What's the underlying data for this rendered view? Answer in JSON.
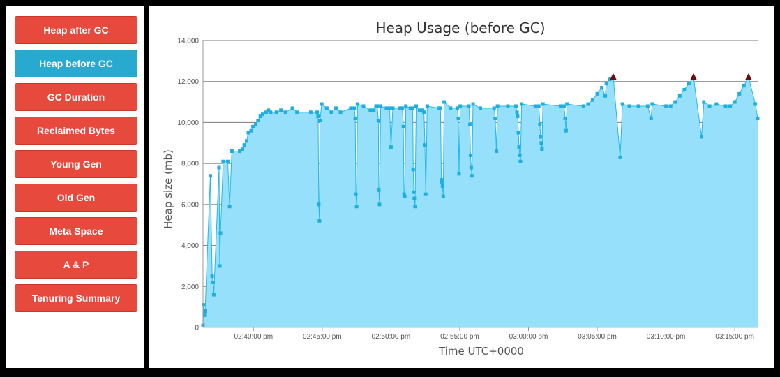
{
  "sidebar": {
    "items": [
      {
        "label": "Heap after GC",
        "active": false
      },
      {
        "label": "Heap before GC",
        "active": true
      },
      {
        "label": "GC Duration",
        "active": false
      },
      {
        "label": "Reclaimed Bytes",
        "active": false
      },
      {
        "label": "Young Gen",
        "active": false
      },
      {
        "label": "Old Gen",
        "active": false
      },
      {
        "label": "Meta Space",
        "active": false
      },
      {
        "label": "A & P",
        "active": false
      },
      {
        "label": "Tenuring Summary",
        "active": false
      }
    ]
  },
  "colors": {
    "button": "#e8493d",
    "button_active": "#27a9d0",
    "series_line": "#25b8e6",
    "series_fill": "#97e0fb",
    "marker": "#1eaee0",
    "peak_marker": "#6b0d0d"
  },
  "chart_data": {
    "type": "area",
    "title": "Heap Usage (before GC)",
    "xlabel": "Time UTC+0000",
    "ylabel": "Heap size (mb)",
    "ylim": [
      0,
      14000
    ],
    "yticks": [
      0,
      2000,
      4000,
      6000,
      8000,
      10000,
      12000,
      14000
    ],
    "ytick_labels": [
      "0",
      "2,000",
      "4,000",
      "6,000",
      "8,000",
      "10,000",
      "12,000",
      "14,000"
    ],
    "xlim": [
      "02:36:20",
      "03:16:40"
    ],
    "xticks": [
      "02:40:00",
      "02:45:00",
      "02:50:00",
      "02:55:00",
      "03:00:00",
      "03:05:00",
      "03:10:00",
      "03:15:00"
    ],
    "xtick_labels": [
      "02:40:00 pm",
      "02:45:00 pm",
      "02:50:00 pm",
      "02:55:00 pm",
      "03:00:00 pm",
      "03:05:00 pm",
      "03:10:00 pm",
      "03:15:00 pm"
    ],
    "grid": true,
    "legend": "none",
    "series": [
      {
        "points": [
          [
            "02:36:20",
            100
          ],
          [
            "02:36:23",
            1100
          ],
          [
            "02:36:26",
            600
          ],
          [
            "02:36:29",
            800
          ],
          [
            "02:36:52",
            7400
          ],
          [
            "02:37:00",
            2500
          ],
          [
            "02:37:04",
            2200
          ],
          [
            "02:37:07",
            1600
          ],
          [
            "02:37:30",
            7800
          ],
          [
            "02:37:33",
            3000
          ],
          [
            "02:37:36",
            4600
          ],
          [
            "02:37:48",
            8100
          ],
          [
            "02:38:08",
            8100
          ],
          [
            "02:38:16",
            5900
          ],
          [
            "02:38:26",
            8600
          ],
          [
            "02:39:00",
            8600
          ],
          [
            "02:39:12",
            8700
          ],
          [
            "02:39:20",
            8900
          ],
          [
            "02:39:30",
            9100
          ],
          [
            "02:39:38",
            9500
          ],
          [
            "02:39:50",
            9600
          ],
          [
            "02:39:58",
            9800
          ],
          [
            "02:40:10",
            9900
          ],
          [
            "02:40:20",
            10100
          ],
          [
            "02:40:30",
            10300
          ],
          [
            "02:40:40",
            10400
          ],
          [
            "02:40:55",
            10500
          ],
          [
            "02:41:05",
            10600
          ],
          [
            "02:41:15",
            10500
          ],
          [
            "02:41:40",
            10500
          ],
          [
            "02:42:00",
            10600
          ],
          [
            "02:42:20",
            10500
          ],
          [
            "02:42:50",
            10700
          ],
          [
            "02:43:10",
            10500
          ],
          [
            "02:44:10",
            10500
          ],
          [
            "02:44:38",
            10500
          ],
          [
            "02:44:42",
            10300
          ],
          [
            "02:44:45",
            6000
          ],
          [
            "02:44:48",
            5200
          ],
          [
            "02:44:50",
            10100
          ],
          [
            "02:44:58",
            10900
          ],
          [
            "02:45:20",
            10700
          ],
          [
            "02:45:40",
            10500
          ],
          [
            "02:46:00",
            10700
          ],
          [
            "02:46:20",
            10500
          ],
          [
            "02:47:05",
            10700
          ],
          [
            "02:47:20",
            10700
          ],
          [
            "02:47:24",
            10200
          ],
          [
            "02:47:27",
            6500
          ],
          [
            "02:47:30",
            5900
          ],
          [
            "02:47:34",
            10900
          ],
          [
            "02:48:00",
            10800
          ],
          [
            "02:48:30",
            10600
          ],
          [
            "02:48:45",
            10600
          ],
          [
            "02:48:55",
            10800
          ],
          [
            "02:49:00",
            10800
          ],
          [
            "02:49:05",
            10100
          ],
          [
            "02:49:07",
            6700
          ],
          [
            "02:49:10",
            6000
          ],
          [
            "02:49:15",
            10800
          ],
          [
            "02:49:40",
            10700
          ],
          [
            "02:49:54",
            10700
          ],
          [
            "02:50:00",
            8800
          ],
          [
            "02:50:08",
            10700
          ],
          [
            "02:50:40",
            10700
          ],
          [
            "02:50:50",
            10700
          ],
          [
            "02:50:54",
            9800
          ],
          [
            "02:50:57",
            6500
          ],
          [
            "02:51:00",
            6400
          ],
          [
            "02:51:05",
            10800
          ],
          [
            "02:51:25",
            10700
          ],
          [
            "02:51:35",
            10700
          ],
          [
            "02:51:37",
            7700
          ],
          [
            "02:51:40",
            6600
          ],
          [
            "02:51:42",
            6300
          ],
          [
            "02:51:45",
            5900
          ],
          [
            "02:51:50",
            10800
          ],
          [
            "02:52:05",
            10600
          ],
          [
            "02:52:18",
            10600
          ],
          [
            "02:52:24",
            10500
          ],
          [
            "02:52:28",
            8900
          ],
          [
            "02:52:32",
            6500
          ],
          [
            "02:52:38",
            10800
          ],
          [
            "02:53:30",
            10700
          ],
          [
            "02:53:36",
            10700
          ],
          [
            "02:53:40",
            7100
          ],
          [
            "02:53:42",
            7200
          ],
          [
            "02:53:45",
            6900
          ],
          [
            "02:53:48",
            6400
          ],
          [
            "02:53:52",
            11000
          ],
          [
            "02:54:20",
            10700
          ],
          [
            "02:54:50",
            10700
          ],
          [
            "02:54:54",
            10200
          ],
          [
            "02:54:57",
            7500
          ],
          [
            "02:55:02",
            10800
          ],
          [
            "02:55:40",
            10800
          ],
          [
            "02:55:44",
            9900
          ],
          [
            "02:55:47",
            8400
          ],
          [
            "02:55:50",
            7800
          ],
          [
            "02:55:53",
            7400
          ],
          [
            "02:55:58",
            10900
          ],
          [
            "02:56:30",
            10700
          ],
          [
            "02:57:30",
            10700
          ],
          [
            "02:57:35",
            10200
          ],
          [
            "02:57:40",
            8600
          ],
          [
            "02:57:45",
            10800
          ],
          [
            "02:58:30",
            10800
          ],
          [
            "02:59:05",
            10800
          ],
          [
            "02:59:10",
            10500
          ],
          [
            "02:59:13",
            10300
          ],
          [
            "02:59:16",
            9500
          ],
          [
            "02:59:19",
            8800
          ],
          [
            "02:59:22",
            8400
          ],
          [
            "02:59:25",
            8100
          ],
          [
            "02:59:30",
            10900
          ],
          [
            "03:00:30",
            10800
          ],
          [
            "03:00:45",
            10800
          ],
          [
            "03:00:50",
            9900
          ],
          [
            "03:00:53",
            9300
          ],
          [
            "03:00:56",
            9000
          ],
          [
            "03:00:59",
            8700
          ],
          [
            "03:01:03",
            10900
          ],
          [
            "03:02:20",
            10800
          ],
          [
            "03:02:35",
            10800
          ],
          [
            "03:02:40",
            10200
          ],
          [
            "03:02:44",
            9600
          ],
          [
            "03:02:48",
            10900
          ],
          [
            "03:04:00",
            10800
          ],
          [
            "03:04:20",
            10900
          ],
          [
            "03:04:40",
            11100
          ],
          [
            "03:05:00",
            11400
          ],
          [
            "03:05:20",
            11700
          ],
          [
            "03:05:35",
            11300
          ],
          [
            "03:05:40",
            11900
          ],
          [
            "03:05:55",
            12100
          ],
          [
            "03:06:10",
            12200
          ],
          [
            "03:06:40",
            8300
          ],
          [
            "03:06:50",
            10900
          ],
          [
            "03:07:20",
            10800
          ],
          [
            "03:08:00",
            10800
          ],
          [
            "03:08:40",
            10800
          ],
          [
            "03:08:55",
            10200
          ],
          [
            "03:09:00",
            10900
          ],
          [
            "03:10:00",
            10800
          ],
          [
            "03:10:20",
            10800
          ],
          [
            "03:10:40",
            11000
          ],
          [
            "03:11:00",
            11300
          ],
          [
            "03:11:20",
            11600
          ],
          [
            "03:11:40",
            11900
          ],
          [
            "03:12:00",
            12200
          ],
          [
            "03:12:35",
            9300
          ],
          [
            "03:12:45",
            11000
          ],
          [
            "03:13:10",
            10800
          ],
          [
            "03:13:40",
            10900
          ],
          [
            "03:14:20",
            10800
          ],
          [
            "03:14:40",
            10800
          ],
          [
            "03:15:00",
            11000
          ],
          [
            "03:15:20",
            11400
          ],
          [
            "03:15:40",
            11800
          ],
          [
            "03:16:00",
            12200
          ],
          [
            "03:16:30",
            10900
          ],
          [
            "03:16:40",
            10200
          ]
        ],
        "peaks": [
          [
            "03:06:10",
            12200
          ],
          [
            "03:12:00",
            12200
          ],
          [
            "03:16:00",
            12200
          ]
        ]
      }
    ]
  }
}
